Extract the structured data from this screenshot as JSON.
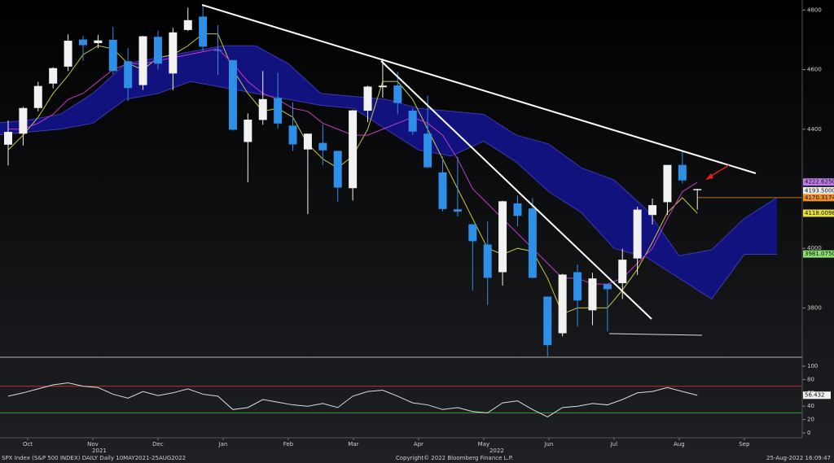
{
  "chart_data": [
    {
      "type": "candlestick",
      "xlim": [
        0.075,
        12.39
      ],
      "xticks": [
        {
          "value": 0.5,
          "label": "Oct"
        },
        {
          "value": 1.5,
          "label": "Nov"
        },
        {
          "value": 2.5,
          "label": "Dec"
        },
        {
          "value": 3.5,
          "label": "Jan"
        },
        {
          "value": 4.5,
          "label": "Feb"
        },
        {
          "value": 5.5,
          "label": "Mar"
        },
        {
          "value": 6.5,
          "label": "Apr"
        },
        {
          "value": 7.5,
          "label": "May"
        },
        {
          "value": 8.5,
          "label": "Jun"
        },
        {
          "value": 9.5,
          "label": "Jul"
        },
        {
          "value": 10.5,
          "label": "Aug"
        },
        {
          "value": 11.5,
          "label": "Sep"
        }
      ],
      "year_labels": [
        {
          "value": 1.6,
          "label": "2021"
        },
        {
          "value": 7.7,
          "label": "2022"
        }
      ],
      "ylim": [
        3640,
        4820
      ],
      "yticks": [
        3800,
        4000,
        4400,
        4600,
        4800
      ],
      "up_color": "#f2f2f2",
      "down_color": "#2f8ee6",
      "x": [
        0.2,
        0.43,
        0.66,
        0.89,
        1.12,
        1.35,
        1.58,
        1.81,
        2.04,
        2.27,
        2.5,
        2.73,
        2.96,
        3.19,
        3.42,
        3.65,
        3.88,
        4.11,
        4.34,
        4.57,
        4.8,
        5.03,
        5.26,
        5.49,
        5.72,
        5.95,
        6.18,
        6.41,
        6.64,
        6.87,
        7.1,
        7.33,
        7.56,
        7.79,
        8.02,
        8.25,
        8.48,
        8.71,
        8.94,
        9.17,
        9.4,
        9.63,
        9.86,
        10.09,
        10.32,
        10.55,
        10.78
      ],
      "open": [
        4348,
        4385,
        4471,
        4553,
        4610,
        4701,
        4689,
        4700,
        4628,
        4548,
        4710,
        4587,
        4733,
        4778,
        4666,
        4632,
        4357,
        4431,
        4505,
        4412,
        4332,
        4354,
        4327,
        4202,
        4462,
        4541,
        4547,
        4462,
        4385,
        4255,
        4131,
        4081,
        4013,
        3920,
        4151,
        4134,
        3838,
        3715,
        3920,
        3792,
        3880,
        3883,
        3966,
        4112,
        4155,
        4280,
        4195
      ],
      "high": [
        4429,
        4475,
        4559,
        4608,
        4718,
        4714,
        4717,
        4743,
        4672,
        4713,
        4731,
        4740,
        4808,
        4818,
        4749,
        4632,
        4453,
        4595,
        4590,
        4490,
        4385,
        4416,
        4327,
        4465,
        4546,
        4637,
        4593,
        4471,
        4513,
        4308,
        4307,
        4081,
        4090,
        4160,
        4178,
        4169,
        3838,
        3914,
        3946,
        3918,
        3880,
        3999,
        4140,
        4167,
        4280,
        4325,
        4200
      ],
      "low": [
        4278,
        4345,
        4460,
        4537,
        4595,
        4630,
        4672,
        4585,
        4495,
        4532,
        4600,
        4531,
        4730,
        4662,
        4582,
        4395,
        4222,
        4415,
        4402,
        4327,
        4115,
        4279,
        4157,
        4161,
        4424,
        4506,
        4450,
        4381,
        4269,
        4124,
        4107,
        3859,
        3810,
        3875,
        4074,
        3900,
        3636,
        3705,
        3738,
        3742,
        3721,
        3830,
        3911,
        4080,
        4112,
        4218,
        4130
      ],
      "close": [
        4391,
        4471,
        4545,
        4605,
        4697,
        4682,
        4698,
        4595,
        4538,
        4712,
        4620,
        4725,
        4766,
        4677,
        4663,
        4398,
        4432,
        4501,
        4419,
        4349,
        4385,
        4329,
        4204,
        4463,
        4543,
        4546,
        4488,
        4392,
        4272,
        4132,
        4123,
        4024,
        3901,
        4158,
        4109,
        3901,
        3675,
        3912,
        3825,
        3899,
        3863,
        3962,
        4130,
        4145,
        4280,
        4228,
        4199
      ],
      "cloud": {
        "color": "#12127e",
        "x": [
          0,
          0.5,
          1,
          1.5,
          2,
          2.5,
          3,
          3.5,
          4,
          4.5,
          5,
          5.5,
          6,
          6.5,
          7,
          7.5,
          8,
          8.5,
          9,
          9.5,
          10,
          10.5,
          11,
          11.5,
          12
        ],
        "span_a": [
          4420,
          4430,
          4450,
          4520,
          4620,
          4640,
          4660,
          4680,
          4680,
          4620,
          4520,
          4510,
          4500,
          4470,
          4460,
          4450,
          4380,
          4350,
          4270,
          4230,
          4130,
          3975,
          3995,
          4100,
          4170
        ],
        "span_b": [
          4380,
          4390,
          4400,
          4420,
          4500,
          4520,
          4560,
          4540,
          4520,
          4500,
          4480,
          4470,
          4400,
          4330,
          4310,
          4360,
          4290,
          4190,
          4120,
          4000,
          3970,
          3900,
          3830,
          3980,
          3980
        ]
      },
      "lines": [
        {
          "color": "#c8c83a",
          "values": [
            4330,
            4380,
            4440,
            4520,
            4580,
            4650,
            4680,
            4670,
            4620,
            4600,
            4640,
            4650,
            4680,
            4720,
            4720,
            4600,
            4520,
            4460,
            4470,
            4440,
            4350,
            4300,
            4270,
            4310,
            4400,
            4560,
            4560,
            4500,
            4400,
            4300,
            4200,
            4100,
            4000,
            3980,
            4000,
            3990,
            3900,
            3780,
            3800,
            3800,
            3800,
            3860,
            3930,
            4020,
            4120,
            4170,
            4118
          ]
        },
        {
          "color": "#c23cc2",
          "values": [
            4400,
            4400,
            4420,
            4450,
            4500,
            4520,
            4560,
            4600,
            4620,
            4620,
            4630,
            4640,
            4650,
            4660,
            4670,
            4620,
            4560,
            4520,
            4500,
            4470,
            4460,
            4420,
            4400,
            4380,
            4380,
            4400,
            4420,
            4440,
            4420,
            4380,
            4300,
            4200,
            4150,
            4100,
            4050,
            4000,
            3950,
            3900,
            3900,
            3880,
            3880,
            3900,
            3950,
            4000,
            4100,
            4190,
            4222
          ]
        }
      ],
      "price_labels": [
        {
          "value": 4222.625,
          "label": "4222.6250",
          "color": "#c07ce8"
        },
        {
          "value": 4193.5,
          "label": "4193.5000",
          "color": "#f0f0f0"
        },
        {
          "value": 4170.3174,
          "label": "4170.3174",
          "color": "#f0902a"
        },
        {
          "value": 4118.0098,
          "label": "4118.0098",
          "color": "#e8e040"
        },
        {
          "value": 3981.075,
          "label": "3981.0750",
          "color": "#8ce070"
        }
      ]
    },
    {
      "type": "line",
      "xlim": [
        0.075,
        12.39
      ],
      "ylim": [
        0,
        100
      ],
      "yticks": [
        0,
        20,
        40,
        60,
        80,
        100
      ],
      "x": [
        0.2,
        0.43,
        0.66,
        0.89,
        1.12,
        1.35,
        1.58,
        1.81,
        2.04,
        2.27,
        2.5,
        2.73,
        2.96,
        3.19,
        3.42,
        3.65,
        3.88,
        4.11,
        4.34,
        4.57,
        4.8,
        5.03,
        5.26,
        5.49,
        5.72,
        5.95,
        6.18,
        6.41,
        6.64,
        6.87,
        7.1,
        7.33,
        7.56,
        7.79,
        8.02,
        8.25,
        8.48,
        8.71,
        8.94,
        9.17,
        9.4,
        9.63,
        9.86,
        10.09,
        10.32,
        10.55,
        10.78
      ],
      "series": [
        {
          "color": "#dddddd",
          "values": [
            55,
            60,
            66,
            72,
            75,
            70,
            68,
            58,
            52,
            62,
            56,
            60,
            66,
            58,
            55,
            35,
            38,
            50,
            46,
            42,
            40,
            44,
            38,
            55,
            62,
            64,
            55,
            45,
            42,
            35,
            38,
            32,
            30,
            45,
            48,
            35,
            24,
            38,
            40,
            44,
            42,
            50,
            60,
            62,
            68,
            62,
            56.432
          ]
        }
      ],
      "levels": [
        {
          "value": 70,
          "color": "#b03030"
        },
        {
          "value": 30,
          "color": "#30a030"
        }
      ],
      "last_label": {
        "value": 56.432,
        "label": "56.432"
      }
    }
  ],
  "footer": {
    "left": "SPX Index (S&P 500 INDEX) DAILY  Daily 10MAY2021-25AUG2022",
    "center": "Copyright© 2022 Bloomberg Finance L.P.",
    "right": "25-Aug-2022 16:09:47"
  }
}
